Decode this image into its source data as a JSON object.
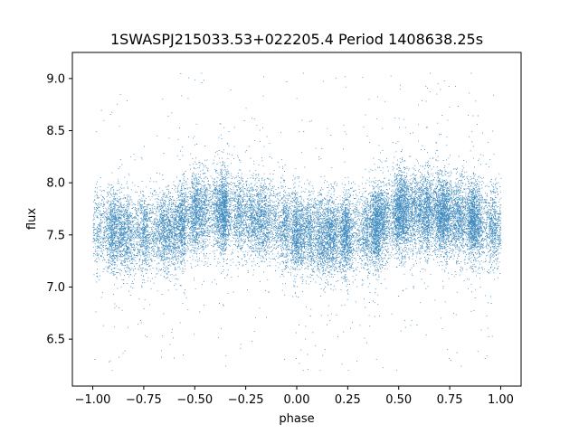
{
  "chart_data": {
    "type": "scatter",
    "title": "1SWASPJ215033.53+022205.4 Period 1408638.25s",
    "xlabel": "phase",
    "ylabel": "flux",
    "xlim": [
      -1.1,
      1.1
    ],
    "ylim": [
      6.05,
      9.25
    ],
    "x_ticks": [
      -1.0,
      -0.75,
      -0.5,
      -0.25,
      0.0,
      0.25,
      0.5,
      0.75,
      1.0
    ],
    "x_tick_labels": [
      "−1.00",
      "−0.75",
      "−0.50",
      "−0.25",
      "0.00",
      "0.25",
      "0.50",
      "0.75",
      "1.00"
    ],
    "y_ticks": [
      6.5,
      7.0,
      7.5,
      8.0,
      8.5,
      9.0
    ],
    "y_tick_labels": [
      "6.5",
      "7.0",
      "7.5",
      "8.0",
      "8.5",
      "9.0"
    ],
    "grid": false,
    "legend": false,
    "series_color": "#1f77b4",
    "phase_range": [
      -1.0,
      1.0
    ],
    "flux_core_range": [
      7.1,
      8.1
    ],
    "flux_extreme_range": [
      6.2,
      9.05
    ],
    "approx_point_count": 24000,
    "flux_profile": [
      {
        "phase": -1.0,
        "mean_flux": 7.55
      },
      {
        "phase": -0.75,
        "mean_flux": 7.5
      },
      {
        "phase": -0.6,
        "mean_flux": 7.55
      },
      {
        "phase": -0.5,
        "mean_flux": 7.72
      },
      {
        "phase": -0.4,
        "mean_flux": 7.72
      },
      {
        "phase": -0.25,
        "mean_flux": 7.68
      },
      {
        "phase": -0.1,
        "mean_flux": 7.62
      },
      {
        "phase": 0.0,
        "mean_flux": 7.52
      },
      {
        "phase": 0.1,
        "mean_flux": 7.5
      },
      {
        "phase": 0.25,
        "mean_flux": 7.5
      },
      {
        "phase": 0.35,
        "mean_flux": 7.55
      },
      {
        "phase": 0.5,
        "mean_flux": 7.72
      },
      {
        "phase": 0.6,
        "mean_flux": 7.72
      },
      {
        "phase": 0.75,
        "mean_flux": 7.68
      },
      {
        "phase": 0.9,
        "mean_flux": 7.62
      },
      {
        "phase": 1.0,
        "mean_flux": 7.55
      }
    ]
  }
}
